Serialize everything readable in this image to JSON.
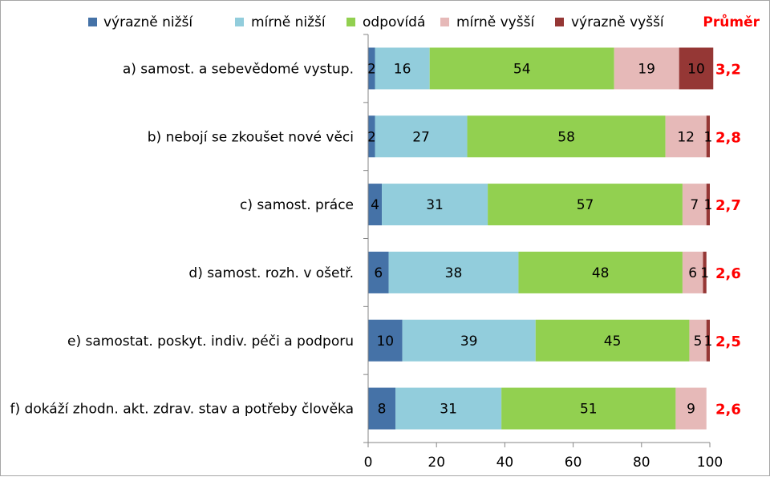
{
  "chart_data": {
    "type": "bar",
    "orientation": "horizontal",
    "stacked": true,
    "categories": [
      "a) samost. a sebevědomé vystup.",
      "b) nebojí se zkoušet nové věci",
      "c) samost. práce",
      "d) samost. rozh. v ošetř.",
      "e) samostat. poskyt. indiv. péči a podporu",
      "f) dokáží zhodn. akt. zdrav. stav a potřeby člověka"
    ],
    "series": [
      {
        "name": "výrazně nižší",
        "color": "#4572a7",
        "values": [
          2,
          2,
          4,
          6,
          10,
          8
        ]
      },
      {
        "name": "mírně nižší",
        "color": "#92cddc",
        "values": [
          16,
          27,
          31,
          38,
          39,
          31
        ]
      },
      {
        "name": "odpovídá",
        "color": "#92d050",
        "values": [
          54,
          58,
          57,
          48,
          45,
          51
        ]
      },
      {
        "name": "mírně vyšší",
        "color": "#e6b9b8",
        "values": [
          19,
          12,
          7,
          6,
          5,
          9
        ]
      },
      {
        "name": "výrazně vyšší",
        "color": "#953735",
        "values": [
          10,
          1,
          1,
          1,
          1,
          0
        ]
      }
    ],
    "average": {
      "label": "Průměr",
      "color": "#ff0000",
      "values": [
        "3,2",
        "2,8",
        "2,7",
        "2,6",
        "2,5",
        "2,6"
      ]
    },
    "xlim": [
      0,
      100
    ],
    "xticks": [
      0,
      20,
      40,
      60,
      80,
      100
    ],
    "legend": "top",
    "grid": false
  }
}
